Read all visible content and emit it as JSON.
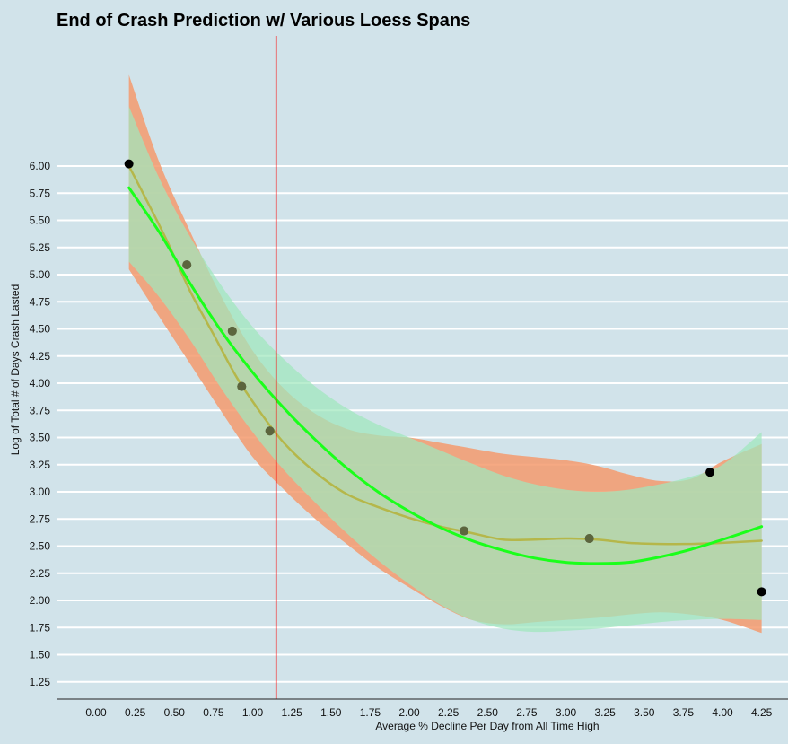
{
  "chart_data": {
    "type": "scatter",
    "title": "End of Crash Prediction w/ Various Loess Spans",
    "xlabel": "Average % Decline Per Day from All Time High",
    "ylabel": "Log of Total # of Days Crash Lasted",
    "xlim": [
      -0.25,
      4.42
    ],
    "ylim": [
      1.12,
      6.8
    ],
    "x_ticks": [
      "0.00",
      "0.25",
      "0.50",
      "0.75",
      "1.00",
      "1.25",
      "1.50",
      "1.75",
      "2.00",
      "2.25",
      "2.50",
      "2.75",
      "3.00",
      "3.25",
      "3.50",
      "3.75",
      "4.00",
      "4.25"
    ],
    "y_ticks": [
      "1.25",
      "1.50",
      "1.75",
      "2.00",
      "2.25",
      "2.50",
      "2.75",
      "3.00",
      "3.25",
      "3.50",
      "3.75",
      "4.00",
      "4.25",
      "4.50",
      "4.75",
      "5.00",
      "5.25",
      "5.50",
      "5.75",
      "6.00"
    ],
    "grid": "horizontal",
    "vertical_line": {
      "x": 1.15,
      "color": "#ff0000"
    },
    "points": [
      {
        "x": 0.21,
        "y": 6.02
      },
      {
        "x": 0.58,
        "y": 5.09
      },
      {
        "x": 0.87,
        "y": 4.48
      },
      {
        "x": 0.93,
        "y": 3.97
      },
      {
        "x": 1.11,
        "y": 3.56
      },
      {
        "x": 2.35,
        "y": 2.64
      },
      {
        "x": 3.15,
        "y": 2.57
      },
      {
        "x": 3.92,
        "y": 3.18
      },
      {
        "x": 4.25,
        "y": 2.08
      }
    ],
    "series": [
      {
        "color": "#f59a6d",
        "kind": "ribbon",
        "x": [
          0.21,
          0.4,
          0.6,
          0.8,
          1.0,
          1.2,
          1.4,
          1.6,
          1.8,
          2.0,
          2.2,
          2.4,
          2.6,
          2.8,
          3.0,
          3.2,
          3.4,
          3.6,
          3.8,
          4.0,
          4.25
        ],
        "upper": [
          6.84,
          6.05,
          5.4,
          4.8,
          4.3,
          3.95,
          3.72,
          3.58,
          3.52,
          3.5,
          3.45,
          3.4,
          3.35,
          3.32,
          3.29,
          3.24,
          3.16,
          3.1,
          3.12,
          3.28,
          3.44
        ],
        "lower": [
          5.05,
          4.62,
          4.18,
          3.74,
          3.32,
          3.02,
          2.75,
          2.52,
          2.3,
          2.12,
          1.95,
          1.82,
          1.78,
          1.8,
          1.82,
          1.84,
          1.87,
          1.89,
          1.87,
          1.82,
          1.7
        ]
      },
      {
        "color": "#9fe8bd",
        "kind": "ribbon",
        "x": [
          0.21,
          0.4,
          0.6,
          0.8,
          1.0,
          1.2,
          1.4,
          1.6,
          1.8,
          2.0,
          2.2,
          2.4,
          2.6,
          2.8,
          3.0,
          3.2,
          3.4,
          3.6,
          3.8,
          4.0,
          4.25
        ],
        "upper": [
          6.55,
          5.9,
          5.35,
          4.9,
          4.52,
          4.22,
          3.97,
          3.77,
          3.62,
          3.5,
          3.38,
          3.26,
          3.15,
          3.07,
          3.02,
          3.0,
          3.02,
          3.07,
          3.14,
          3.25,
          3.55
        ],
        "lower": [
          5.12,
          4.8,
          4.4,
          3.95,
          3.55,
          3.2,
          2.9,
          2.62,
          2.37,
          2.15,
          1.96,
          1.82,
          1.74,
          1.71,
          1.72,
          1.74,
          1.77,
          1.8,
          1.82,
          1.83,
          1.82
        ]
      },
      {
        "color": "#b5b74a",
        "kind": "line",
        "x": [
          0.21,
          0.3,
          0.45,
          0.6,
          0.75,
          0.9,
          1.05,
          1.2,
          1.4,
          1.6,
          1.8,
          2.0,
          2.2,
          2.4,
          2.6,
          2.8,
          3.0,
          3.2,
          3.4,
          3.6,
          3.8,
          4.0,
          4.25
        ],
        "y": [
          6.0,
          5.75,
          5.32,
          4.85,
          4.45,
          4.05,
          3.73,
          3.45,
          3.18,
          2.98,
          2.86,
          2.76,
          2.68,
          2.62,
          2.56,
          2.56,
          2.57,
          2.56,
          2.53,
          2.52,
          2.52,
          2.53,
          2.55
        ]
      },
      {
        "color": "#1aff1a",
        "kind": "line",
        "x": [
          0.21,
          0.4,
          0.6,
          0.8,
          1.0,
          1.2,
          1.4,
          1.6,
          1.8,
          2.0,
          2.2,
          2.4,
          2.6,
          2.8,
          3.0,
          3.2,
          3.4,
          3.6,
          3.8,
          4.0,
          4.25
        ],
        "y": [
          5.8,
          5.4,
          4.92,
          4.48,
          4.1,
          3.77,
          3.48,
          3.22,
          3.0,
          2.82,
          2.67,
          2.55,
          2.46,
          2.39,
          2.35,
          2.34,
          2.35,
          2.4,
          2.47,
          2.56,
          2.68
        ]
      }
    ],
    "point_color": "#000000"
  }
}
